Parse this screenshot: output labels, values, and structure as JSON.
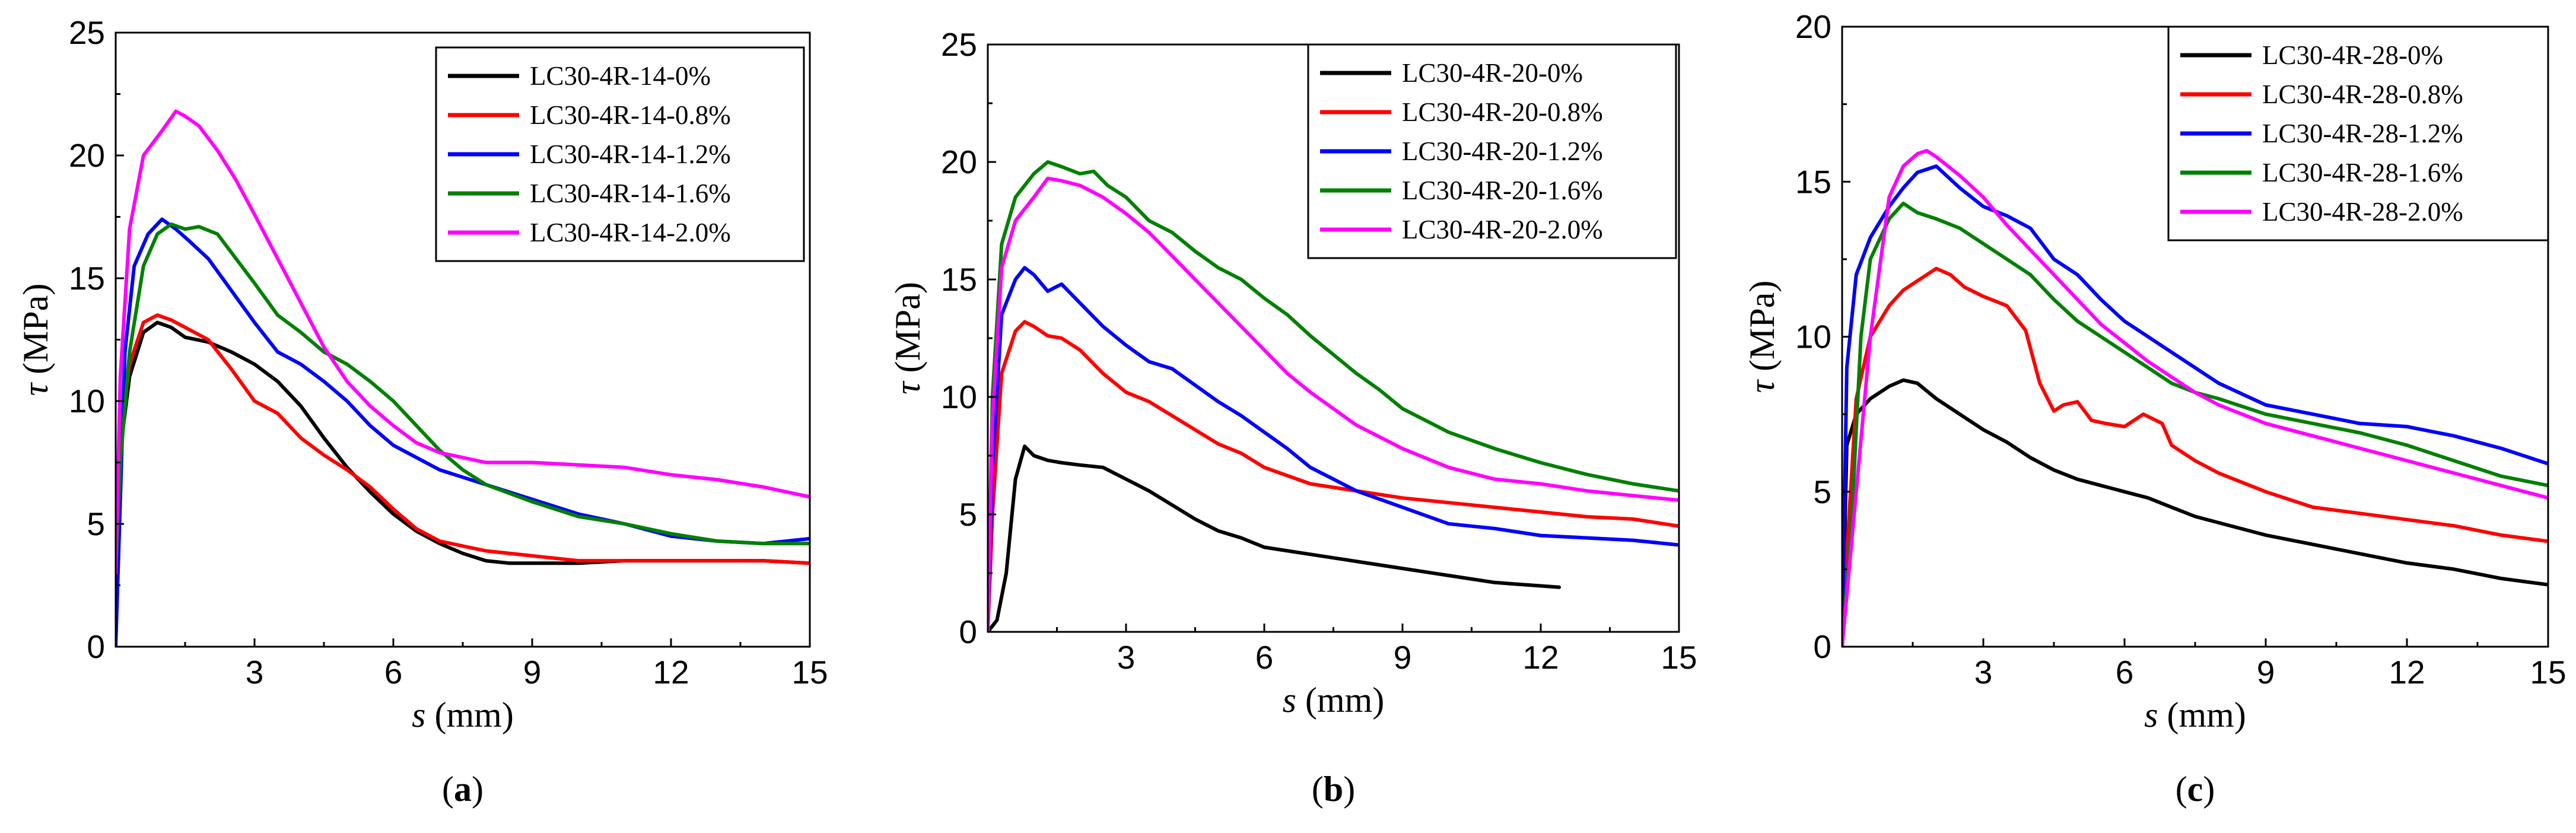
{
  "chart_data": [
    {
      "type": "line",
      "panel_label": "(a)",
      "panel_letter": "a",
      "xlabel": "s",
      "xlabel_unit": "(mm)",
      "ylabel": "τ",
      "ylabel_unit": "(MPa)",
      "xlim": [
        0,
        15
      ],
      "ylim": [
        0,
        25
      ],
      "xticks": [
        3,
        6,
        9,
        12,
        15
      ],
      "yticks": [
        0,
        5,
        10,
        15,
        20,
        25
      ],
      "legend_position": "top-right",
      "series": [
        {
          "name": "LC30-4R-14-0%",
          "color": "#000000",
          "x": [
            0,
            0.1,
            0.3,
            0.6,
            0.9,
            1.2,
            1.5,
            2.0,
            2.5,
            3.0,
            3.5,
            4.0,
            4.5,
            5.0,
            5.5,
            6.0,
            6.5,
            7.0,
            7.5,
            8.0,
            8.5,
            9.0,
            10.0,
            11.0,
            12.0,
            13.0,
            14.0,
            15.0
          ],
          "y": [
            3.5,
            8.0,
            11.0,
            12.8,
            13.2,
            13.0,
            12.6,
            12.4,
            12.0,
            11.5,
            10.8,
            9.8,
            8.5,
            7.3,
            6.3,
            5.4,
            4.7,
            4.2,
            3.8,
            3.5,
            3.4,
            3.4,
            3.4,
            3.5,
            3.5,
            3.5,
            3.5,
            3.4
          ]
        },
        {
          "name": "LC30-4R-14-0.8%",
          "color": "#ff0000",
          "x": [
            0,
            0.1,
            0.3,
            0.6,
            0.9,
            1.2,
            1.5,
            2.0,
            2.5,
            3.0,
            3.5,
            4.0,
            4.5,
            5.0,
            5.5,
            6.0,
            6.5,
            7.0,
            7.5,
            8.0,
            9.0,
            10.0,
            11.0,
            12.0,
            13.0,
            14.0,
            15.0
          ],
          "y": [
            3.5,
            8.5,
            11.5,
            13.2,
            13.5,
            13.3,
            13.0,
            12.5,
            11.3,
            10.0,
            9.5,
            8.5,
            7.8,
            7.2,
            6.5,
            5.6,
            4.8,
            4.3,
            4.1,
            3.9,
            3.7,
            3.5,
            3.5,
            3.5,
            3.5,
            3.5,
            3.4
          ]
        },
        {
          "name": "LC30-4R-14-1.2%",
          "color": "#0000ff",
          "x": [
            0,
            0.05,
            0.2,
            0.4,
            0.7,
            1.0,
            1.3,
            1.6,
            2.0,
            2.5,
            3.0,
            3.5,
            4.0,
            4.5,
            5.0,
            5.5,
            6.0,
            7.0,
            8.0,
            9.0,
            10.0,
            11.0,
            12.0,
            13.0,
            14.0,
            15.0
          ],
          "y": [
            0,
            3.0,
            12.0,
            15.5,
            16.8,
            17.4,
            17.0,
            16.5,
            15.8,
            14.5,
            13.2,
            12.0,
            11.5,
            10.8,
            10.0,
            9.0,
            8.2,
            7.2,
            6.6,
            6.0,
            5.4,
            5.0,
            4.5,
            4.3,
            4.2,
            4.4
          ]
        },
        {
          "name": "LC30-4R-14-1.6%",
          "color": "#008000",
          "x": [
            0,
            0.1,
            0.3,
            0.6,
            0.9,
            1.2,
            1.5,
            1.8,
            2.2,
            2.6,
            3.0,
            3.5,
            4.0,
            4.5,
            5.0,
            5.5,
            6.0,
            6.5,
            7.0,
            7.5,
            8.0,
            9.0,
            10.0,
            11.0,
            12.0,
            13.0,
            14.0,
            15.0
          ],
          "y": [
            3.0,
            7.5,
            12.0,
            15.5,
            16.8,
            17.2,
            17.0,
            17.1,
            16.8,
            15.8,
            14.8,
            13.5,
            12.8,
            12.0,
            11.5,
            10.8,
            10.0,
            9.0,
            8.0,
            7.2,
            6.6,
            5.9,
            5.3,
            5.0,
            4.6,
            4.3,
            4.2,
            4.2
          ]
        },
        {
          "name": "LC30-4R-14-2.0%",
          "color": "#ff00ff",
          "x": [
            0,
            0.1,
            0.3,
            0.6,
            1.0,
            1.3,
            1.5,
            1.8,
            2.2,
            2.6,
            3.0,
            3.5,
            4.0,
            4.5,
            5.0,
            5.5,
            6.0,
            6.5,
            7.0,
            7.5,
            8.0,
            9.0,
            10.0,
            11.0,
            12.0,
            13.0,
            14.0,
            15.0
          ],
          "y": [
            3.0,
            11.0,
            17.0,
            20.0,
            21.0,
            21.8,
            21.6,
            21.2,
            20.2,
            19.0,
            17.6,
            15.8,
            14.0,
            12.2,
            10.8,
            9.8,
            9.0,
            8.3,
            7.9,
            7.7,
            7.5,
            7.5,
            7.4,
            7.3,
            7.0,
            6.8,
            6.5,
            6.1
          ]
        }
      ]
    },
    {
      "type": "line",
      "panel_label": "(b)",
      "panel_letter": "b",
      "xlabel": "s",
      "xlabel_unit": "(mm)",
      "ylabel": "τ",
      "ylabel_unit": "(MPa)",
      "xlim": [
        0,
        15
      ],
      "ylim": [
        0,
        25
      ],
      "xticks": [
        3,
        6,
        9,
        12,
        15
      ],
      "yticks": [
        0,
        5,
        10,
        15,
        20,
        25
      ],
      "legend_position": "top-right",
      "series": [
        {
          "name": "LC30-4R-20-0%",
          "color": "#000000",
          "x": [
            0,
            0.2,
            0.4,
            0.6,
            0.8,
            1.0,
            1.3,
            1.6,
            2.0,
            2.5,
            3.0,
            3.5,
            4.0,
            4.5,
            5.0,
            5.5,
            6.0,
            7.0,
            8.0,
            9.0,
            10.0,
            11.0,
            12.4
          ],
          "y": [
            0,
            0.5,
            2.5,
            6.5,
            7.9,
            7.5,
            7.3,
            7.2,
            7.1,
            7.0,
            6.5,
            6.0,
            5.4,
            4.8,
            4.3,
            4.0,
            3.6,
            3.3,
            3.0,
            2.7,
            2.4,
            2.1,
            1.9
          ]
        },
        {
          "name": "LC30-4R-20-0.8%",
          "color": "#ff0000",
          "x": [
            0,
            0.1,
            0.3,
            0.6,
            0.8,
            1.0,
            1.3,
            1.6,
            2.0,
            2.5,
            3.0,
            3.5,
            4.0,
            4.5,
            5.0,
            5.5,
            6.0,
            7.0,
            8.0,
            9.0,
            10.0,
            11.0,
            12.0,
            13.0,
            14.0,
            15.0
          ],
          "y": [
            0,
            5.0,
            11.0,
            12.8,
            13.2,
            13.0,
            12.6,
            12.5,
            12.0,
            11.0,
            10.2,
            9.8,
            9.2,
            8.6,
            8.0,
            7.6,
            7.0,
            6.3,
            6.0,
            5.7,
            5.5,
            5.3,
            5.1,
            4.9,
            4.8,
            4.5
          ]
        },
        {
          "name": "LC30-4R-20-1.2%",
          "color": "#0000ff",
          "x": [
            0,
            0.1,
            0.3,
            0.6,
            0.8,
            1.0,
            1.3,
            1.6,
            2.0,
            2.5,
            3.0,
            3.5,
            4.0,
            4.5,
            5.0,
            5.5,
            6.0,
            6.5,
            7.0,
            7.5,
            8.0,
            9.0,
            10.0,
            11.0,
            12.0,
            13.0,
            14.0,
            15.0
          ],
          "y": [
            0,
            7.0,
            13.5,
            15.0,
            15.5,
            15.2,
            14.5,
            14.8,
            14.0,
            13.0,
            12.2,
            11.5,
            11.2,
            10.5,
            9.8,
            9.2,
            8.5,
            7.8,
            7.0,
            6.5,
            6.0,
            5.3,
            4.6,
            4.4,
            4.1,
            4.0,
            3.9,
            3.7
          ]
        },
        {
          "name": "LC30-4R-20-1.6%",
          "color": "#008000",
          "x": [
            0,
            0.1,
            0.3,
            0.6,
            1.0,
            1.3,
            1.6,
            2.0,
            2.3,
            2.6,
            3.0,
            3.5,
            4.0,
            4.5,
            5.0,
            5.5,
            6.0,
            6.5,
            7.0,
            7.5,
            8.0,
            8.5,
            9.0,
            10.0,
            11.0,
            12.0,
            13.0,
            14.0,
            15.0
          ],
          "y": [
            0,
            10.0,
            16.5,
            18.5,
            19.5,
            20.0,
            19.8,
            19.5,
            19.6,
            19.0,
            18.5,
            17.5,
            17.0,
            16.2,
            15.5,
            15.0,
            14.2,
            13.5,
            12.6,
            11.8,
            11.0,
            10.3,
            9.5,
            8.5,
            7.8,
            7.2,
            6.7,
            6.3,
            6.0
          ]
        },
        {
          "name": "LC30-4R-20-2.0%",
          "color": "#ff00ff",
          "x": [
            0,
            0.1,
            0.3,
            0.6,
            1.0,
            1.3,
            1.6,
            2.0,
            2.5,
            3.0,
            3.5,
            4.0,
            4.5,
            5.0,
            5.5,
            6.0,
            6.5,
            7.0,
            7.5,
            8.0,
            9.0,
            10.0,
            11.0,
            12.0,
            13.0,
            14.0,
            15.0
          ],
          "y": [
            0,
            9.0,
            15.5,
            17.5,
            18.5,
            19.3,
            19.2,
            19.0,
            18.5,
            17.8,
            17.0,
            16.0,
            15.0,
            14.0,
            13.0,
            12.0,
            11.0,
            10.2,
            9.5,
            8.8,
            7.8,
            7.0,
            6.5,
            6.3,
            6.0,
            5.8,
            5.6
          ]
        }
      ]
    },
    {
      "type": "line",
      "panel_label": "(c)",
      "panel_letter": "c",
      "xlabel": "s",
      "xlabel_unit": "(mm)",
      "ylabel": "τ",
      "ylabel_unit": "(MPa)",
      "xlim": [
        0,
        15
      ],
      "ylim": [
        0,
        20
      ],
      "xticks": [
        3,
        6,
        9,
        12,
        15
      ],
      "yticks": [
        0,
        5,
        10,
        15,
        20
      ],
      "legend_position": "top-right",
      "series": [
        {
          "name": "LC30-4R-28-0%",
          "color": "#000000",
          "x": [
            0,
            0.1,
            0.3,
            0.6,
            1.0,
            1.3,
            1.6,
            2.0,
            2.5,
            3.0,
            3.5,
            4.0,
            4.5,
            5.0,
            5.5,
            6.0,
            6.5,
            7.0,
            7.5,
            8.0,
            9.0,
            10.0,
            11.0,
            12.0,
            13.0,
            14.0,
            15.0
          ],
          "y": [
            0,
            6.5,
            7.5,
            8.0,
            8.4,
            8.6,
            8.5,
            8.0,
            7.5,
            7.0,
            6.6,
            6.1,
            5.7,
            5.4,
            5.2,
            5.0,
            4.8,
            4.5,
            4.2,
            4.0,
            3.6,
            3.3,
            3.0,
            2.7,
            2.5,
            2.2,
            2.0
          ]
        },
        {
          "name": "LC30-4R-28-0.8%",
          "color": "#ff0000",
          "x": [
            0,
            0.1,
            0.3,
            0.6,
            1.0,
            1.3,
            1.6,
            2.0,
            2.3,
            2.6,
            3.0,
            3.5,
            3.9,
            4.2,
            4.5,
            4.7,
            5.0,
            5.3,
            5.6,
            6.0,
            6.4,
            6.8,
            7.0,
            7.5,
            8.0,
            9.0,
            10.0,
            11.0,
            12.0,
            13.0,
            14.0,
            15.0
          ],
          "y": [
            0,
            3.0,
            8.0,
            10.0,
            11.0,
            11.5,
            11.8,
            12.2,
            12.0,
            11.6,
            11.3,
            11.0,
            10.2,
            8.5,
            7.6,
            7.8,
            7.9,
            7.3,
            7.2,
            7.1,
            7.5,
            7.2,
            6.5,
            6.0,
            5.6,
            5.0,
            4.5,
            4.3,
            4.1,
            3.9,
            3.6,
            3.4
          ]
        },
        {
          "name": "LC30-4R-28-1.2%",
          "color": "#0000ff",
          "x": [
            0,
            0.1,
            0.3,
            0.6,
            1.0,
            1.3,
            1.6,
            2.0,
            2.5,
            3.0,
            3.5,
            4.0,
            4.5,
            5.0,
            5.5,
            6.0,
            6.5,
            7.0,
            7.5,
            8.0,
            9.0,
            10.0,
            11.0,
            12.0,
            13.0,
            14.0,
            15.0
          ],
          "y": [
            0,
            9.0,
            12.0,
            13.2,
            14.2,
            14.8,
            15.3,
            15.5,
            14.8,
            14.2,
            13.9,
            13.5,
            12.5,
            12.0,
            11.2,
            10.5,
            10.0,
            9.5,
            9.0,
            8.5,
            7.8,
            7.5,
            7.2,
            7.1,
            6.8,
            6.4,
            5.9
          ]
        },
        {
          "name": "LC30-4R-28-1.6%",
          "color": "#008000",
          "x": [
            0,
            0.2,
            0.4,
            0.6,
            1.0,
            1.3,
            1.6,
            2.0,
            2.5,
            3.0,
            3.5,
            4.0,
            4.5,
            5.0,
            5.5,
            6.0,
            6.5,
            7.0,
            7.5,
            8.0,
            9.0,
            10.0,
            11.0,
            12.0,
            13.0,
            14.0,
            15.0
          ],
          "y": [
            0,
            4.0,
            10.0,
            12.5,
            13.8,
            14.3,
            14.0,
            13.8,
            13.5,
            13.0,
            12.5,
            12.0,
            11.2,
            10.5,
            10.0,
            9.5,
            9.0,
            8.5,
            8.2,
            8.0,
            7.5,
            7.2,
            6.9,
            6.5,
            6.0,
            5.5,
            5.2
          ]
        },
        {
          "name": "LC30-4R-28-2.0%",
          "color": "#ff00ff",
          "x": [
            0,
            0.3,
            0.6,
            1.0,
            1.3,
            1.6,
            1.8,
            2.0,
            2.5,
            3.0,
            3.5,
            4.0,
            4.5,
            5.0,
            5.5,
            6.0,
            6.5,
            7.0,
            7.5,
            8.0,
            9.0,
            10.0,
            11.0,
            12.0,
            13.0,
            14.0,
            15.0
          ],
          "y": [
            0,
            5.0,
            10.0,
            14.5,
            15.5,
            15.9,
            16.0,
            15.8,
            15.2,
            14.5,
            13.6,
            12.8,
            12.0,
            11.2,
            10.4,
            9.8,
            9.2,
            8.7,
            8.2,
            7.8,
            7.2,
            6.8,
            6.4,
            6.0,
            5.6,
            5.2,
            4.8
          ]
        }
      ]
    }
  ]
}
